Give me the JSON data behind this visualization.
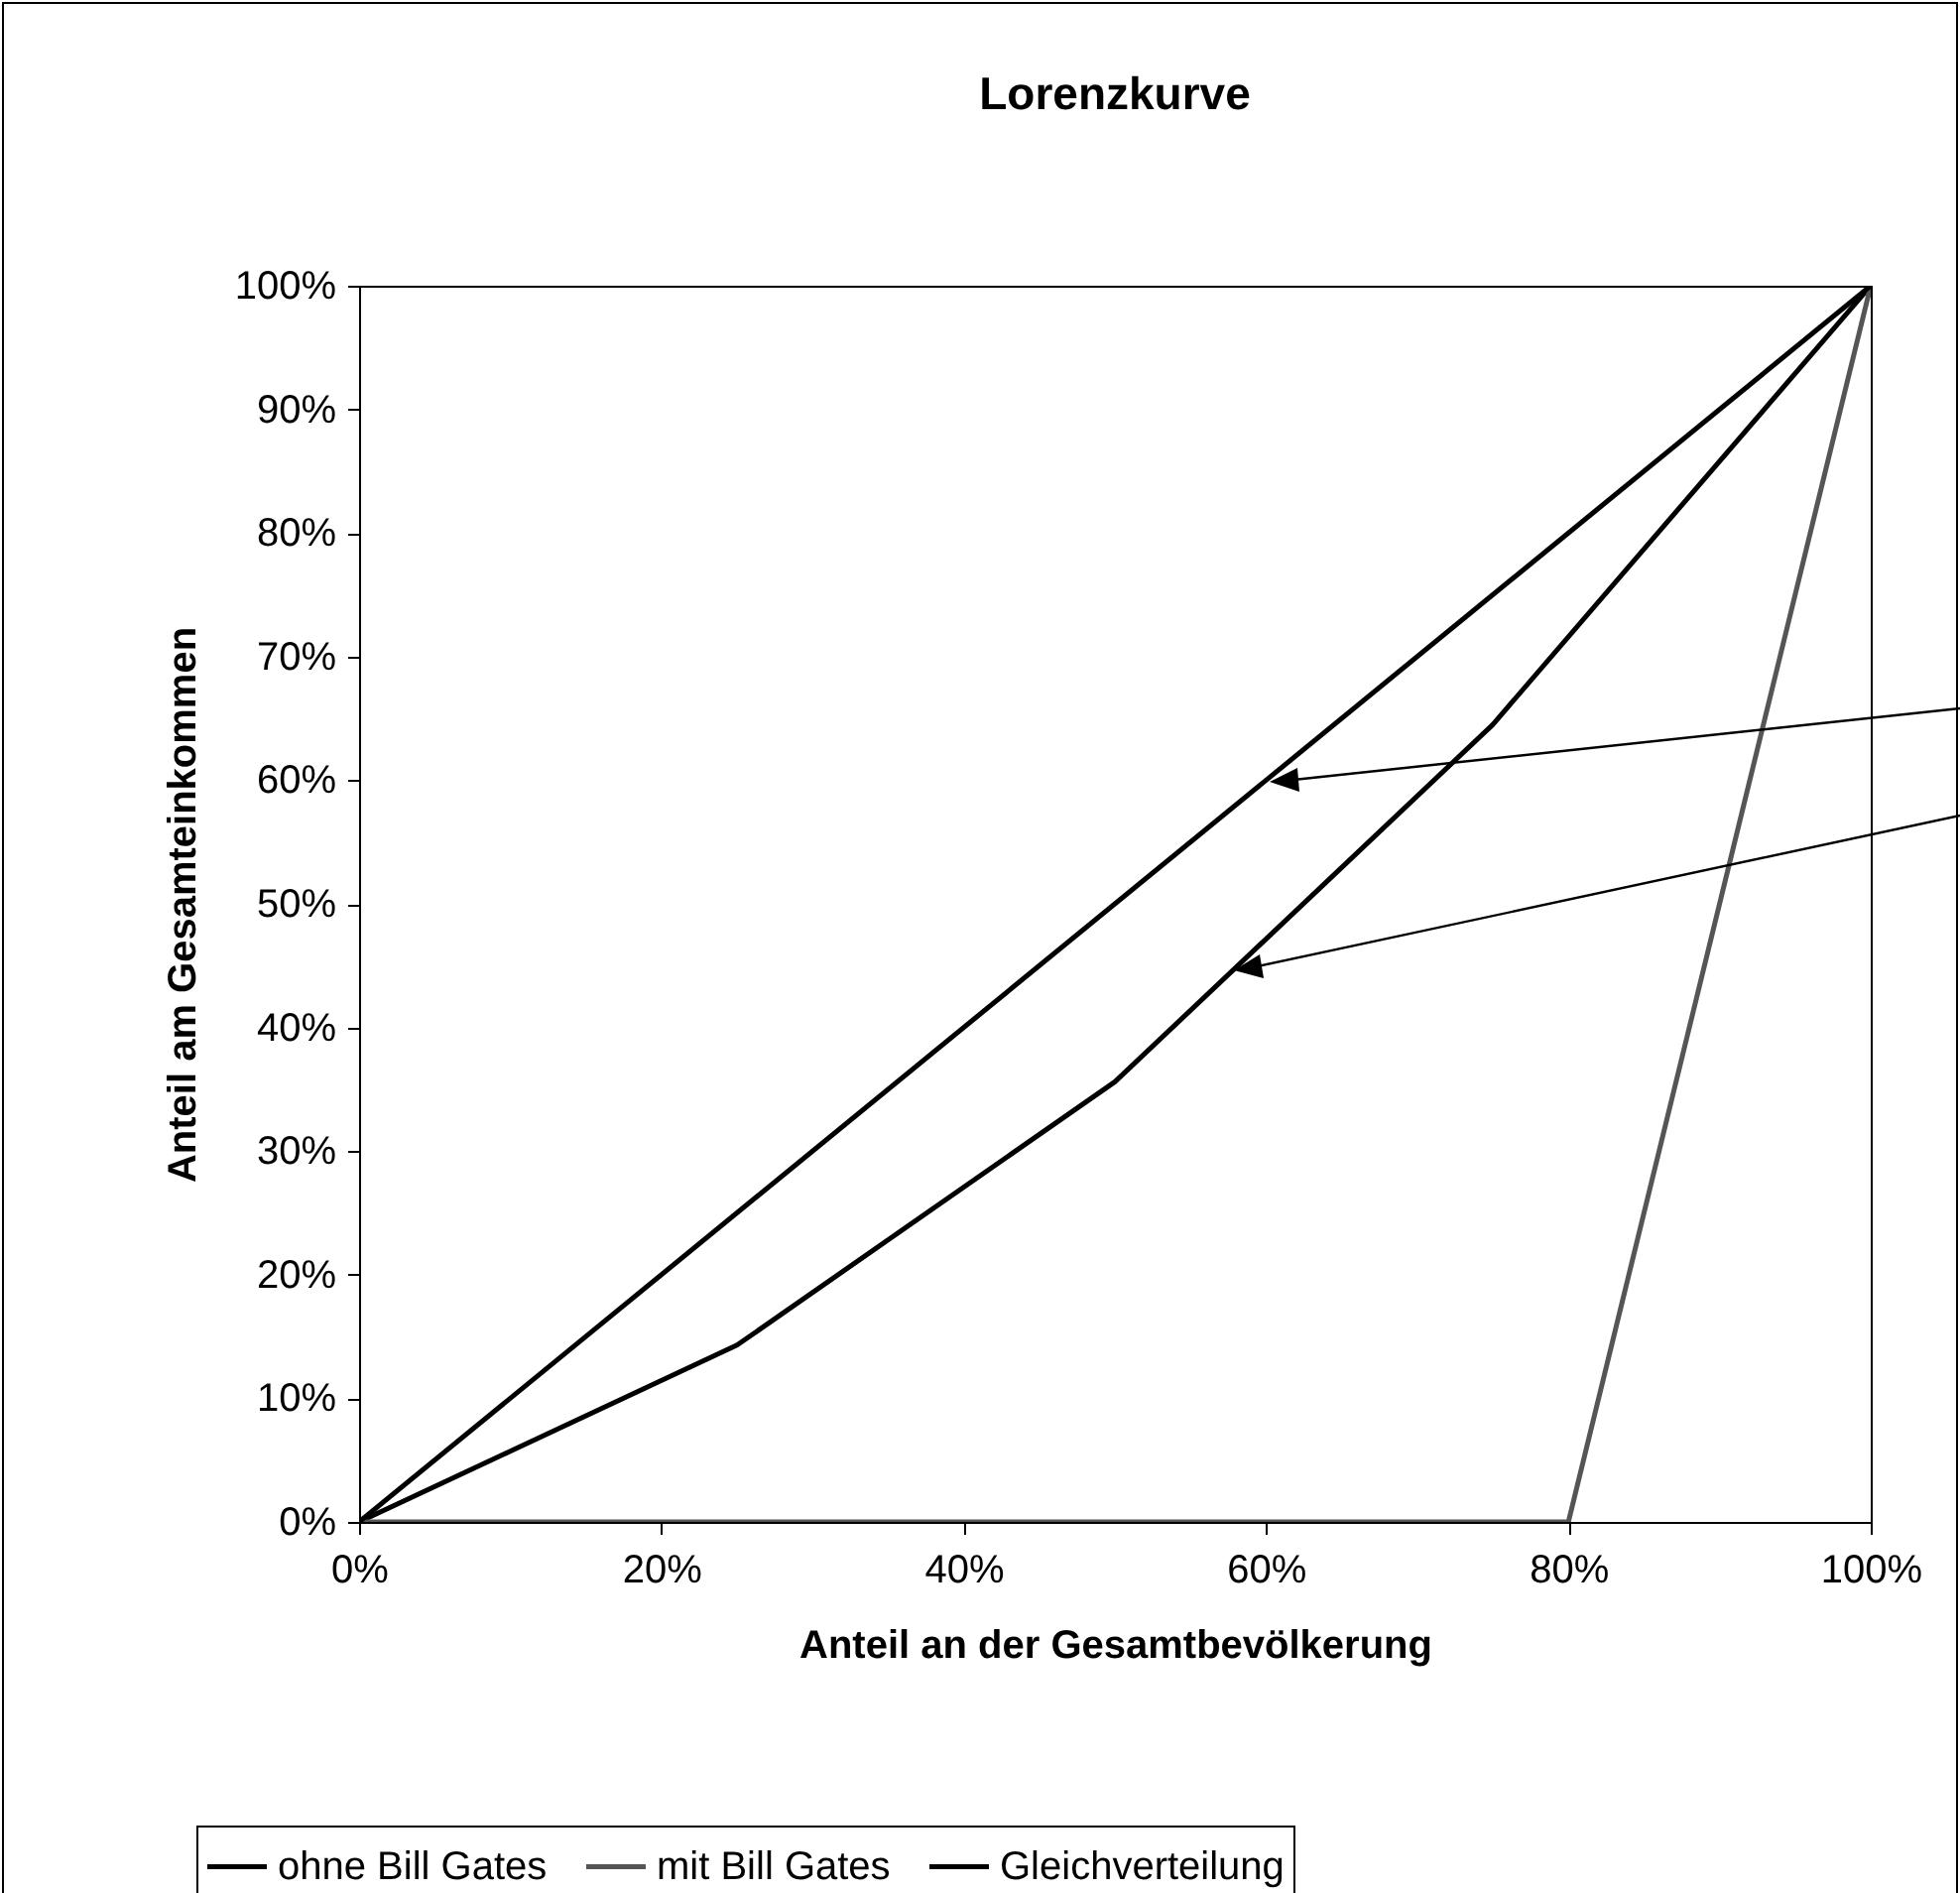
{
  "chart_data": {
    "type": "line",
    "title": "Lorenzkurve",
    "xlabel": "Anteil an der Gesamtbevölkerung",
    "ylabel": "Anteil am Gesamteinkommen",
    "series": [
      {
        "name": "ohne Bill Gates",
        "color": "#000000",
        "x": [
          0,
          25,
          50,
          75,
          100
        ],
        "values": [
          0,
          14.3,
          35.6,
          64.5,
          100
        ]
      },
      {
        "name": "mit Bill Gates",
        "color": "#555555",
        "x": [
          0,
          80,
          100
        ],
        "values": [
          0,
          0,
          100
        ]
      },
      {
        "name": "Gleichverteilung",
        "color": "#000000",
        "x": [
          0,
          100
        ],
        "values": [
          0,
          100
        ]
      }
    ],
    "xlim": [
      0,
      100
    ],
    "ylim": [
      0,
      100
    ],
    "xticks": [
      {
        "value": 0,
        "label": "0%"
      },
      {
        "value": 20,
        "label": "20%"
      },
      {
        "value": 40,
        "label": "40%"
      },
      {
        "value": 60,
        "label": "60%"
      },
      {
        "value": 80,
        "label": "80%"
      },
      {
        "value": 100,
        "label": "100%"
      }
    ],
    "yticks": [
      {
        "value": 0,
        "label": "0%"
      },
      {
        "value": 10,
        "label": "10%"
      },
      {
        "value": 20,
        "label": "20%"
      },
      {
        "value": 30,
        "label": "30%"
      },
      {
        "value": 40,
        "label": "40%"
      },
      {
        "value": 50,
        "label": "50%"
      },
      {
        "value": 60,
        "label": "60%"
      },
      {
        "value": 70,
        "label": "70%"
      },
      {
        "value": 80,
        "label": "80%"
      },
      {
        "value": 90,
        "label": "90%"
      },
      {
        "value": 100,
        "label": "100%"
      }
    ],
    "grid": false,
    "legend": "bottom",
    "marker": "none",
    "line_style": "solid"
  }
}
